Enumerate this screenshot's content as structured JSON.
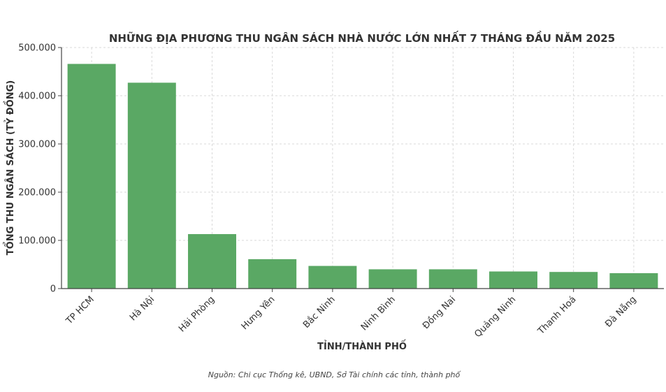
{
  "chart_data": {
    "type": "bar",
    "title": "NHỮNG ĐỊA PHƯƠNG THU NGÂN SÁCH NHÀ NƯỚC LỚN NHẤT 7 THÁNG ĐẦU NĂM 2025",
    "xlabel": "TỈNH/THÀNH PHỐ",
    "ylabel": "TỔNG THU NGÂN SÁCH (TỶ ĐỒNG)",
    "categories": [
      "TP HCM",
      "Hà Nội",
      "Hải Phòng",
      "Hưng Yên",
      "Bắc Ninh",
      "Ninh Bình",
      "Đồng Nai",
      "Quảng Ninh",
      "Thanh Hoá",
      "Đà Nẵng"
    ],
    "values": [
      466000,
      427000,
      113000,
      61000,
      47000,
      40000,
      40000,
      35500,
      34500,
      32000
    ],
    "ylim": [
      0,
      500000
    ],
    "yticks": [
      0,
      100000,
      200000,
      300000,
      400000,
      500000
    ],
    "ytick_labels": [
      "0",
      "100.000",
      "200.000",
      "300.000",
      "400.000",
      "500.000"
    ],
    "grid": true,
    "bar_color": "#5aa864"
  },
  "source_note": "Nguồn: Chi cục Thống kê, UBND, Sở Tài chính các tỉnh, thành phố"
}
